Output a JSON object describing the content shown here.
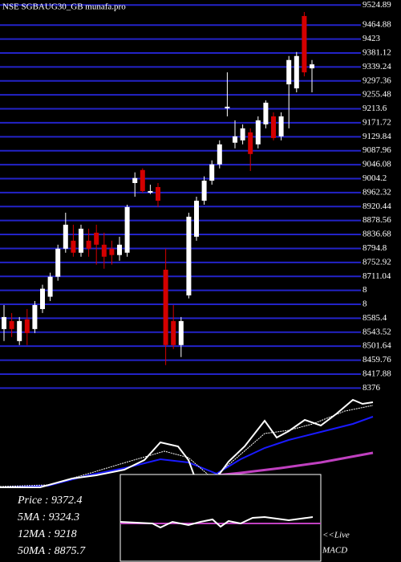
{
  "chart_data": {
    "type": "candlestick",
    "title": "NSE SGBAUG30_GB munafa.pro",
    "ylim": [
      8360,
      9540
    ],
    "yticks": [
      9524.89,
      9464.88,
      9423,
      9381.12,
      9339.24,
      9297.36,
      9255.48,
      9213.6,
      9171.72,
      9129.84,
      9087.96,
      9046.08,
      9004.2,
      8962.32,
      8920.44,
      8878.56,
      8836.68,
      8794.8,
      8752.92,
      8711.04,
      {
        "value": 8669.16,
        "label": "8"
      },
      {
        "value": 8627.28,
        "label": "8"
      },
      8585.4,
      8543.52,
      8501.64,
      8459.76,
      8417.88,
      8376
    ],
    "grid": true,
    "up_color": "#ffffff",
    "down_color": "#d40000",
    "grid_color": "#2323c8",
    "open": [
      8553,
      8577,
      8517,
      8582,
      8553,
      8613,
      8650,
      8710,
      8794,
      8818,
      8782,
      8818,
      8842,
      8806,
      8794,
      8775,
      8782,
      8991,
      9030,
      8962,
      8979,
      8731,
      8577,
      8505,
      8654,
      8830,
      8938,
      8998,
      9047,
      9215,
      9112,
      9119,
      9143,
      9107,
      9167,
      9191,
      9131,
      9287,
      9275,
      9492,
      9335
    ],
    "high": [
      8625,
      8601,
      8589,
      8613,
      8637,
      8686,
      8722,
      8806,
      8902,
      8866,
      8866,
      8854,
      8866,
      8842,
      8818,
      8830,
      8926,
      9023,
      9035,
      8986,
      8991,
      8794,
      8625,
      8589,
      8902,
      8950,
      9011,
      9059,
      9119,
      9323,
      9179,
      9167,
      9155,
      9191,
      9239,
      9203,
      9203,
      9372,
      9384,
      9504,
      9360
    ],
    "low": [
      8517,
      8529,
      8505,
      8505,
      8541,
      8601,
      8637,
      8698,
      8782,
      8770,
      8770,
      8770,
      8746,
      8734,
      8746,
      8758,
      8770,
      8950,
      8962,
      8958,
      8919,
      8445,
      8493,
      8469,
      8645,
      8818,
      8926,
      8986,
      9035,
      9191,
      9095,
      9107,
      9027,
      9095,
      9155,
      9119,
      9119,
      9155,
      9263,
      9311,
      9263
    ],
    "close": [
      8589,
      8553,
      8577,
      8541,
      8625,
      8674,
      8710,
      8794,
      8866,
      8782,
      8854,
      8794,
      8806,
      8770,
      8775,
      8806,
      8919,
      9006,
      8967,
      8967,
      8938,
      8505,
      8505,
      8577,
      8890,
      8938,
      8998,
      9047,
      9107,
      9220,
      9131,
      9155,
      9078,
      9179,
      9232,
      9126,
      9191,
      9360,
      9372,
      9323,
      9347
    ],
    "info": [
      "Price : 9372.4",
      "5MA : 9324.3",
      "12MA : 9218",
      "50MA : 8875.7"
    ],
    "macd_label": [
      "<<Live",
      "MACD"
    ]
  }
}
